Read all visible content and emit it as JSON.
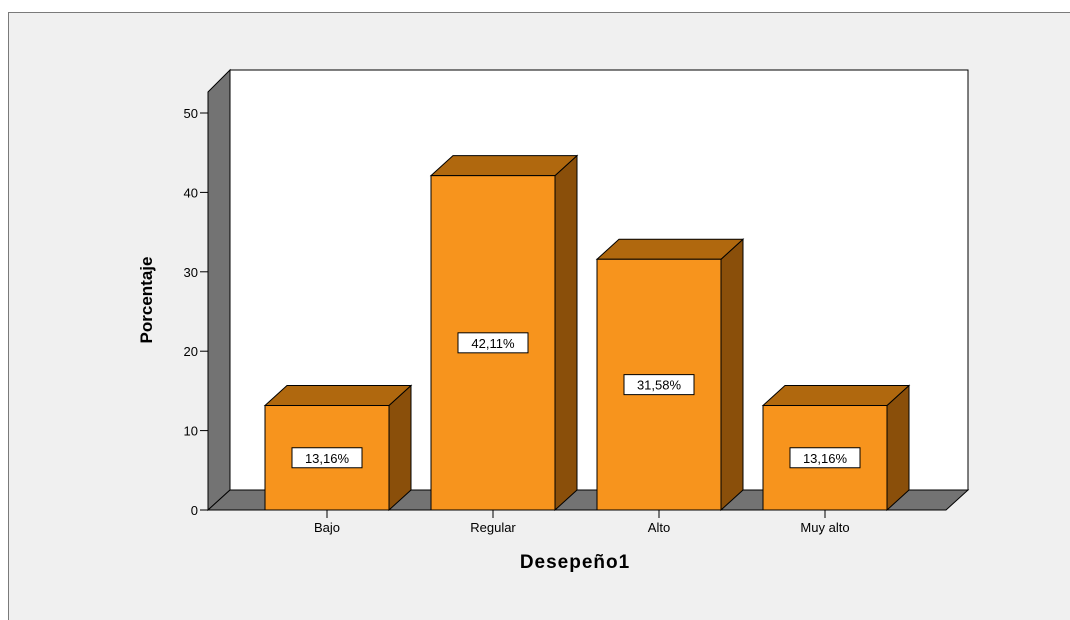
{
  "chart_data": {
    "type": "bar",
    "style": "3d",
    "categories": [
      "Bajo",
      "Regular",
      "Alto",
      "Muy alto"
    ],
    "values": [
      13.16,
      42.11,
      31.58,
      13.16
    ],
    "data_labels": [
      "13,16%",
      "42,11%",
      "31,58%",
      "13,16%"
    ],
    "xlabel": "Desepeño1",
    "ylabel": "Porcentaje",
    "ylim": [
      0,
      50
    ],
    "yticks": [
      "0",
      "10",
      "20",
      "30",
      "40",
      "50"
    ],
    "ytick_values": [
      0,
      10,
      20,
      30,
      40,
      50
    ],
    "grid": false,
    "colors": {
      "bar_front": "#f7941d",
      "bar_top": "#b0680e",
      "bar_side": "#8a4f0a",
      "wall_side": "#737373",
      "floor": "#737373",
      "plot_back": "#ffffff",
      "frame_bg": "#f0f0f0"
    }
  }
}
